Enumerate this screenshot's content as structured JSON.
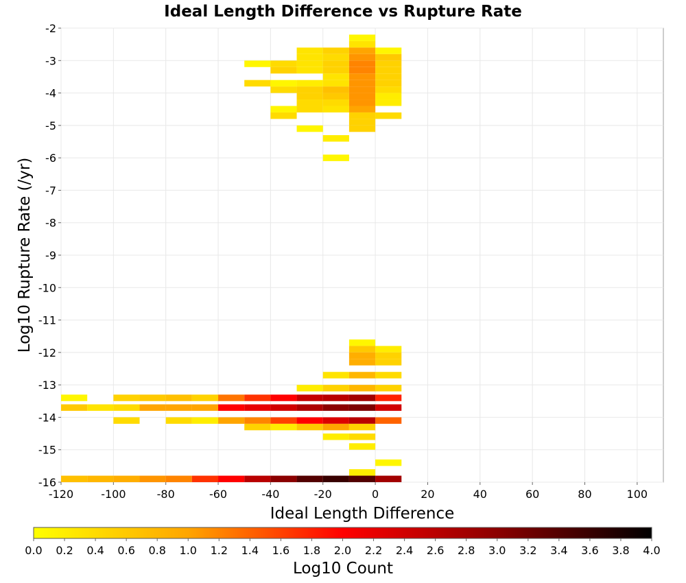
{
  "chart_data": {
    "type": "heatmap",
    "title": "Ideal Length Difference vs Rupture Rate",
    "xlabel": "Ideal Length Difference",
    "ylabel": "Log10 Rupture Rate (/yr)",
    "xlim": [
      -120,
      110
    ],
    "ylim": [
      -16,
      -2
    ],
    "x_ticks": [
      "-120",
      "-100",
      "-80",
      "-60",
      "-40",
      "-20",
      "0",
      "20",
      "40",
      "60",
      "80",
      "100"
    ],
    "y_ticks": [
      "-2",
      "-3",
      "-4",
      "-5",
      "-6",
      "-7",
      "-8",
      "-9",
      "-10",
      "-11",
      "-12",
      "-13",
      "-14",
      "-15",
      "-16"
    ],
    "grid": true,
    "cell_width": 10,
    "cell_height": 0.2,
    "cells": [
      {
        "x": -5,
        "y": -2.3,
        "v": 0.1
      },
      {
        "x": -5,
        "y": -2.5,
        "v": 0.3
      },
      {
        "x": -25,
        "y": -2.7,
        "v": 0.3
      },
      {
        "x": -15,
        "y": -2.7,
        "v": 0.5
      },
      {
        "x": -5,
        "y": -2.7,
        "v": 1.0
      },
      {
        "x": 5,
        "y": -2.7,
        "v": 0.1
      },
      {
        "x": -45,
        "y": -3.1,
        "v": 0.1
      },
      {
        "x": -35,
        "y": -3.1,
        "v": 0.4
      },
      {
        "x": -25,
        "y": -3.1,
        "v": 0.3
      },
      {
        "x": -15,
        "y": -3.1,
        "v": 0.5
      },
      {
        "x": -5,
        "y": -3.1,
        "v": 1.2
      },
      {
        "x": 5,
        "y": -3.1,
        "v": 0.5
      },
      {
        "x": -15,
        "y": -2.9,
        "v": 0.4
      },
      {
        "x": -5,
        "y": -2.9,
        "v": 1.1
      },
      {
        "x": 5,
        "y": -2.9,
        "v": 0.6
      },
      {
        "x": -25,
        "y": -2.9,
        "v": 0.3
      },
      {
        "x": -35,
        "y": -3.3,
        "v": 0.5
      },
      {
        "x": -25,
        "y": -3.3,
        "v": 0.3
      },
      {
        "x": -15,
        "y": -3.3,
        "v": 0.5
      },
      {
        "x": -5,
        "y": -3.3,
        "v": 1.2
      },
      {
        "x": 5,
        "y": -3.3,
        "v": 0.5
      },
      {
        "x": -45,
        "y": -3.7,
        "v": 0.4
      },
      {
        "x": -35,
        "y": -3.7,
        "v": 0.1
      },
      {
        "x": -25,
        "y": -3.7,
        "v": 0.2
      },
      {
        "x": -15,
        "y": -3.5,
        "v": 0.3
      },
      {
        "x": -15,
        "y": -3.7,
        "v": 0.3
      },
      {
        "x": -5,
        "y": -3.5,
        "v": 1.1
      },
      {
        "x": -5,
        "y": -3.7,
        "v": 1.1
      },
      {
        "x": 5,
        "y": -3.5,
        "v": 0.5
      },
      {
        "x": 5,
        "y": -3.7,
        "v": 0.5
      },
      {
        "x": -35,
        "y": -3.9,
        "v": 0.4
      },
      {
        "x": -25,
        "y": -3.9,
        "v": 0.5
      },
      {
        "x": -15,
        "y": -3.9,
        "v": 0.7
      },
      {
        "x": -5,
        "y": -3.9,
        "v": 1.1
      },
      {
        "x": 5,
        "y": -3.9,
        "v": 0.4
      },
      {
        "x": -25,
        "y": -4.1,
        "v": 0.5
      },
      {
        "x": -15,
        "y": -4.1,
        "v": 0.6
      },
      {
        "x": -5,
        "y": -4.1,
        "v": 1.1
      },
      {
        "x": 5,
        "y": -4.1,
        "v": 0.2
      },
      {
        "x": -25,
        "y": -4.3,
        "v": 0.4
      },
      {
        "x": -15,
        "y": -4.3,
        "v": 0.4
      },
      {
        "x": -5,
        "y": -4.3,
        "v": 1.1
      },
      {
        "x": 5,
        "y": -4.3,
        "v": 0.2
      },
      {
        "x": -35,
        "y": -4.5,
        "v": 0.1
      },
      {
        "x": -25,
        "y": -4.5,
        "v": 0.4
      },
      {
        "x": -15,
        "y": -4.5,
        "v": 0.3
      },
      {
        "x": -5,
        "y": -4.5,
        "v": 1.0
      },
      {
        "x": -35,
        "y": -4.7,
        "v": 0.4
      },
      {
        "x": -5,
        "y": -4.7,
        "v": 0.5
      },
      {
        "x": 5,
        "y": -4.7,
        "v": 0.4
      },
      {
        "x": -25,
        "y": -5.1,
        "v": 0.1
      },
      {
        "x": -5,
        "y": -4.9,
        "v": 0.5
      },
      {
        "x": -5,
        "y": -5.1,
        "v": 0.5
      },
      {
        "x": -15,
        "y": -5.4,
        "v": 0.2
      },
      {
        "x": -15,
        "y": -6.0,
        "v": 0.1
      },
      {
        "x": -5,
        "y": -11.7,
        "v": 0.1
      },
      {
        "x": -5,
        "y": -11.9,
        "v": 0.6
      },
      {
        "x": 5,
        "y": -11.9,
        "v": 0.2
      },
      {
        "x": -5,
        "y": -12.1,
        "v": 0.9
      },
      {
        "x": 5,
        "y": -12.1,
        "v": 0.5
      },
      {
        "x": -5,
        "y": -12.3,
        "v": 0.9
      },
      {
        "x": 5,
        "y": -12.3,
        "v": 0.5
      },
      {
        "x": -15,
        "y": -12.7,
        "v": 0.3
      },
      {
        "x": -5,
        "y": -12.7,
        "v": 0.8
      },
      {
        "x": 5,
        "y": -12.7,
        "v": 0.4
      },
      {
        "x": -25,
        "y": -13.1,
        "v": 0.2
      },
      {
        "x": -15,
        "y": -13.1,
        "v": 0.5
      },
      {
        "x": -5,
        "y": -13.1,
        "v": 0.8
      },
      {
        "x": 5,
        "y": -13.1,
        "v": 0.5
      },
      {
        "x": -115,
        "y": -13.4,
        "v": 0.1
      },
      {
        "x": -95,
        "y": -13.4,
        "v": 0.5
      },
      {
        "x": -85,
        "y": -13.4,
        "v": 0.6
      },
      {
        "x": -75,
        "y": -13.4,
        "v": 0.7
      },
      {
        "x": -65,
        "y": -13.4,
        "v": 0.5
      },
      {
        "x": -55,
        "y": -13.4,
        "v": 1.3
      },
      {
        "x": -45,
        "y": -13.4,
        "v": 1.7
      },
      {
        "x": -35,
        "y": -13.4,
        "v": 2.0
      },
      {
        "x": -25,
        "y": -13.4,
        "v": 2.5
      },
      {
        "x": -15,
        "y": -13.4,
        "v": 2.6
      },
      {
        "x": -5,
        "y": -13.4,
        "v": 2.8
      },
      {
        "x": 5,
        "y": -13.4,
        "v": 1.8
      },
      {
        "x": -115,
        "y": -13.7,
        "v": 0.6
      },
      {
        "x": -105,
        "y": -13.7,
        "v": 0.3
      },
      {
        "x": -95,
        "y": -13.7,
        "v": 0.4
      },
      {
        "x": -85,
        "y": -13.7,
        "v": 1.0
      },
      {
        "x": -75,
        "y": -13.7,
        "v": 1.0
      },
      {
        "x": -65,
        "y": -13.7,
        "v": 1.0
      },
      {
        "x": -55,
        "y": -13.7,
        "v": 2.0
      },
      {
        "x": -45,
        "y": -13.7,
        "v": 2.2
      },
      {
        "x": -35,
        "y": -13.7,
        "v": 2.4
      },
      {
        "x": -25,
        "y": -13.7,
        "v": 2.7
      },
      {
        "x": -15,
        "y": -13.7,
        "v": 3.0
      },
      {
        "x": -5,
        "y": -13.7,
        "v": 3.1
      },
      {
        "x": 5,
        "y": -13.7,
        "v": 2.4
      },
      {
        "x": -95,
        "y": -14.1,
        "v": 0.4
      },
      {
        "x": -75,
        "y": -14.1,
        "v": 0.4
      },
      {
        "x": -65,
        "y": -14.1,
        "v": 0.2
      },
      {
        "x": -55,
        "y": -14.1,
        "v": 1.0
      },
      {
        "x": -45,
        "y": -14.1,
        "v": 1.2
      },
      {
        "x": -35,
        "y": -14.1,
        "v": 1.6
      },
      {
        "x": -25,
        "y": -14.1,
        "v": 2.0
      },
      {
        "x": -15,
        "y": -14.1,
        "v": 2.3
      },
      {
        "x": -5,
        "y": -14.1,
        "v": 2.6
      },
      {
        "x": 5,
        "y": -14.1,
        "v": 1.4
      },
      {
        "x": -45,
        "y": -14.3,
        "v": 0.5
      },
      {
        "x": -35,
        "y": -14.3,
        "v": 0.2
      },
      {
        "x": -25,
        "y": -14.3,
        "v": 0.6
      },
      {
        "x": -15,
        "y": -14.3,
        "v": 1.0
      },
      {
        "x": -5,
        "y": -14.3,
        "v": 0.5
      },
      {
        "x": -15,
        "y": -14.6,
        "v": 0.2
      },
      {
        "x": -5,
        "y": -14.6,
        "v": 0.4
      },
      {
        "x": -5,
        "y": -14.9,
        "v": 0.2
      },
      {
        "x": 5,
        "y": -15.4,
        "v": 0.1
      },
      {
        "x": -5,
        "y": -15.7,
        "v": 0.2
      },
      {
        "x": -115,
        "y": -15.9,
        "v": 0.7
      },
      {
        "x": -105,
        "y": -15.9,
        "v": 0.8
      },
      {
        "x": -95,
        "y": -15.9,
        "v": 0.9
      },
      {
        "x": -85,
        "y": -15.9,
        "v": 1.1
      },
      {
        "x": -75,
        "y": -15.9,
        "v": 1.2
      },
      {
        "x": -65,
        "y": -15.9,
        "v": 1.7
      },
      {
        "x": -55,
        "y": -15.9,
        "v": 2.0
      },
      {
        "x": -45,
        "y": -15.9,
        "v": 2.6
      },
      {
        "x": -35,
        "y": -15.9,
        "v": 3.0
      },
      {
        "x": -25,
        "y": -15.9,
        "v": 3.4
      },
      {
        "x": -15,
        "y": -15.9,
        "v": 3.6
      },
      {
        "x": -5,
        "y": -15.9,
        "v": 3.4
      },
      {
        "x": 5,
        "y": -15.9,
        "v": 2.8
      }
    ],
    "colorbar": {
      "label": "Log10 Count",
      "range": [
        0.0,
        4.0
      ],
      "ticks": [
        "0.0",
        "0.2",
        "0.4",
        "0.6",
        "0.8",
        "1.0",
        "1.2",
        "1.4",
        "1.6",
        "1.8",
        "2.0",
        "2.2",
        "2.4",
        "2.6",
        "2.8",
        "3.0",
        "3.2",
        "3.4",
        "3.6",
        "3.8",
        "4.0"
      ],
      "colormap_stops": [
        "#ffff00",
        "#ffa500",
        "#ff0000",
        "#8b0000",
        "#000000"
      ]
    }
  }
}
